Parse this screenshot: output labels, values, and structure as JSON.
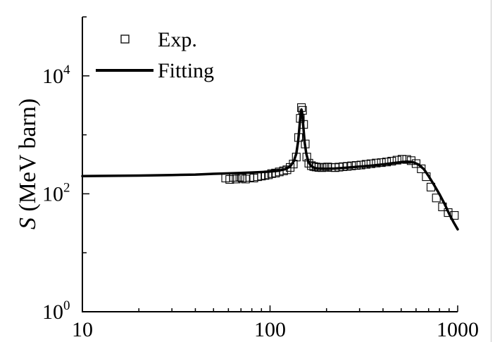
{
  "chart_data": {
    "type": "scatter",
    "xscale": "log",
    "yscale": "log",
    "xlim": [
      10,
      1000
    ],
    "ylim": [
      1,
      100000
    ],
    "xticks": [
      {
        "value": 10,
        "label": "10"
      },
      {
        "value": 100,
        "label": "100"
      },
      {
        "value": 1000,
        "label": "1000"
      }
    ],
    "yticks": [
      {
        "value": 1,
        "base": "10",
        "exp": "0"
      },
      {
        "value": 100,
        "base": "10",
        "exp": "2"
      },
      {
        "value": 10000,
        "base": "10",
        "exp": "4"
      }
    ],
    "ylabel": {
      "symbol": "S",
      "rest": " (MeV barn)"
    },
    "xlabel": "",
    "legend": {
      "position": "top-left"
    },
    "grid": false,
    "series": [
      {
        "name": "Exp.",
        "style": "open-square-markers",
        "color": "#000000",
        "points": [
          [
            58,
            185
          ],
          [
            61,
            175
          ],
          [
            64,
            190
          ],
          [
            66,
            178
          ],
          [
            69,
            192
          ],
          [
            71,
            185
          ],
          [
            74,
            178
          ],
          [
            78,
            190
          ],
          [
            82,
            185
          ],
          [
            86,
            195
          ],
          [
            90,
            200
          ],
          [
            94,
            205
          ],
          [
            98,
            210
          ],
          [
            102,
            220
          ],
          [
            107,
            225
          ],
          [
            112,
            235
          ],
          [
            118,
            245
          ],
          [
            123,
            255
          ],
          [
            128,
            280
          ],
          [
            133,
            320
          ],
          [
            138,
            420
          ],
          [
            142,
            900
          ],
          [
            145,
            1900
          ],
          [
            147,
            2900
          ],
          [
            149,
            2600
          ],
          [
            151,
            1500
          ],
          [
            154,
            700
          ],
          [
            157,
            420
          ],
          [
            161,
            330
          ],
          [
            166,
            300
          ],
          [
            171,
            290
          ],
          [
            176,
            285
          ],
          [
            182,
            280
          ],
          [
            189,
            278
          ],
          [
            196,
            282
          ],
          [
            203,
            285
          ],
          [
            212,
            280
          ],
          [
            222,
            278
          ],
          [
            233,
            283
          ],
          [
            245,
            288
          ],
          [
            258,
            292
          ],
          [
            272,
            298
          ],
          [
            288,
            303
          ],
          [
            305,
            308
          ],
          [
            325,
            316
          ],
          [
            345,
            323
          ],
          [
            368,
            332
          ],
          [
            392,
            338
          ],
          [
            418,
            346
          ],
          [
            445,
            358
          ],
          [
            475,
            372
          ],
          [
            505,
            385
          ],
          [
            535,
            382
          ],
          [
            565,
            365
          ],
          [
            600,
            325
          ],
          [
            640,
            265
          ],
          [
            680,
            195
          ],
          [
            720,
            130
          ],
          [
            770,
            85
          ],
          [
            830,
            60
          ],
          [
            890,
            48
          ],
          [
            960,
            43
          ]
        ]
      },
      {
        "name": "Fitting",
        "style": "solid-line",
        "color": "#000000",
        "points": [
          [
            10,
            200
          ],
          [
            20,
            204
          ],
          [
            30,
            208
          ],
          [
            40,
            212
          ],
          [
            50,
            218
          ],
          [
            60,
            222
          ],
          [
            70,
            226
          ],
          [
            80,
            230
          ],
          [
            90,
            234
          ],
          [
            100,
            238
          ],
          [
            110,
            245
          ],
          [
            120,
            260
          ],
          [
            128,
            290
          ],
          [
            134,
            360
          ],
          [
            138,
            480
          ],
          [
            141,
            760
          ],
          [
            143,
            1200
          ],
          [
            145,
            2000
          ],
          [
            146,
            2500
          ],
          [
            147,
            2700
          ],
          [
            148,
            2500
          ],
          [
            149,
            2000
          ],
          [
            151,
            1200
          ],
          [
            153,
            740
          ],
          [
            156,
            480
          ],
          [
            160,
            350
          ],
          [
            165,
            300
          ],
          [
            172,
            275
          ],
          [
            180,
            268
          ],
          [
            200,
            265
          ],
          [
            220,
            268
          ],
          [
            250,
            276
          ],
          [
            300,
            290
          ],
          [
            350,
            302
          ],
          [
            400,
            315
          ],
          [
            450,
            330
          ],
          [
            500,
            345
          ],
          [
            540,
            352
          ],
          [
            580,
            342
          ],
          [
            620,
            312
          ],
          [
            660,
            262
          ],
          [
            700,
            200
          ],
          [
            750,
            140
          ],
          [
            800,
            98
          ],
          [
            850,
            68
          ],
          [
            900,
            46
          ],
          [
            950,
            33
          ],
          [
            1000,
            25
          ]
        ]
      }
    ]
  }
}
